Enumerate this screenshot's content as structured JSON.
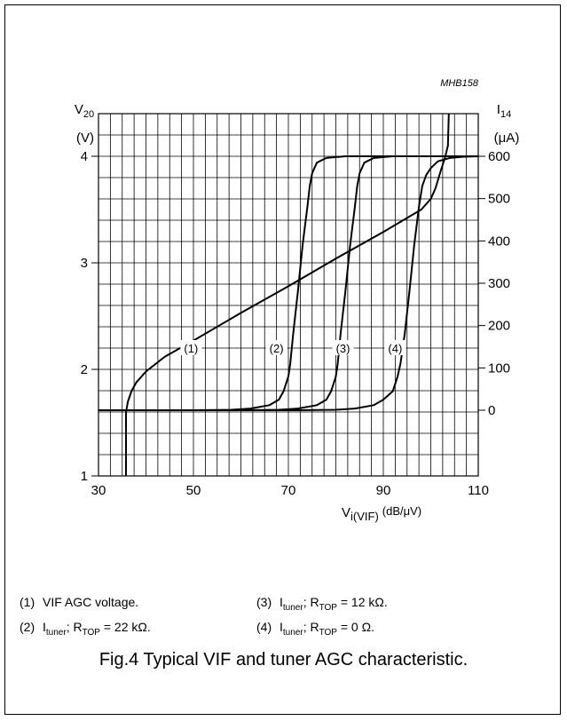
{
  "chart_data": {
    "type": "line",
    "drawing_id": "MHB158",
    "x": {
      "symbol": "V",
      "subscript": "i(VIF)",
      "unit": "(dB/μV)",
      "lim": [
        30,
        110
      ],
      "ticks": [
        "30",
        "50",
        "70",
        "90",
        "110"
      ]
    },
    "y_left": {
      "symbol": "V",
      "subscript": "20",
      "unit": "(V)",
      "lim": [
        1,
        4.4
      ],
      "ticks": [
        "1",
        "2",
        "3",
        "4"
      ]
    },
    "y_right": {
      "symbol": "I",
      "subscript": "14",
      "unit": "(μA)",
      "lim": [
        0,
        600
      ],
      "ticks": [
        "0",
        "100",
        "200",
        "300",
        "400",
        "500",
        "600"
      ]
    },
    "grid": true,
    "series": [
      {
        "name": "(1)",
        "axis": "left",
        "points": [
          [
            35.8,
            1.0
          ],
          [
            35.8,
            1.6
          ],
          [
            36.2,
            1.7
          ],
          [
            37,
            1.8
          ],
          [
            38,
            1.88
          ],
          [
            40,
            1.98
          ],
          [
            42,
            2.05
          ],
          [
            44,
            2.12
          ],
          [
            46,
            2.17
          ],
          [
            48,
            2.22
          ],
          [
            50,
            2.27
          ],
          [
            60,
            2.53
          ],
          [
            70,
            2.78
          ],
          [
            80,
            3.04
          ],
          [
            90,
            3.29
          ],
          [
            98,
            3.5
          ],
          [
            100,
            3.6
          ],
          [
            101,
            3.7
          ],
          [
            102,
            3.85
          ],
          [
            103,
            3.99
          ],
          [
            103.6,
            4.1
          ],
          [
            103.8,
            4.4
          ]
        ]
      },
      {
        "name": "(2)",
        "axis": "right",
        "points": [
          [
            30,
            0
          ],
          [
            50,
            0
          ],
          [
            58,
            1
          ],
          [
            62,
            4
          ],
          [
            66,
            12
          ],
          [
            68,
            25
          ],
          [
            69,
            45
          ],
          [
            70,
            80
          ],
          [
            70.4,
            110
          ],
          [
            71,
            180
          ],
          [
            72,
            280
          ],
          [
            73,
            390
          ],
          [
            74,
            480
          ],
          [
            74.5,
            530
          ],
          [
            75,
            560
          ],
          [
            76,
            585
          ],
          [
            78,
            596
          ],
          [
            82,
            600
          ],
          [
            110,
            600
          ]
        ]
      },
      {
        "name": "(3)",
        "axis": "right",
        "points": [
          [
            30,
            0
          ],
          [
            60,
            0
          ],
          [
            68,
            1
          ],
          [
            72,
            4
          ],
          [
            76,
            12
          ],
          [
            78,
            25
          ],
          [
            79,
            45
          ],
          [
            80,
            80
          ],
          [
            80.4,
            110
          ],
          [
            81,
            180
          ],
          [
            82,
            280
          ],
          [
            83,
            390
          ],
          [
            84,
            480
          ],
          [
            84.5,
            530
          ],
          [
            85,
            560
          ],
          [
            86,
            585
          ],
          [
            88,
            596
          ],
          [
            92,
            600
          ],
          [
            110,
            600
          ]
        ]
      },
      {
        "name": "(4)",
        "axis": "right",
        "points": [
          [
            30,
            0
          ],
          [
            72,
            0
          ],
          [
            80,
            1
          ],
          [
            84,
            4
          ],
          [
            88,
            12
          ],
          [
            90,
            25
          ],
          [
            92,
            45
          ],
          [
            93,
            80
          ],
          [
            93.6,
            110
          ],
          [
            94.5,
            180
          ],
          [
            95.5,
            280
          ],
          [
            96.5,
            390
          ],
          [
            97.5,
            480
          ],
          [
            98.2,
            530
          ],
          [
            99,
            555
          ],
          [
            100,
            572
          ],
          [
            101.5,
            588
          ],
          [
            104,
            596
          ],
          [
            107,
            599
          ],
          [
            110,
            600
          ]
        ]
      }
    ],
    "curve_labels": [
      {
        "text": "(1)",
        "x": 49.5,
        "y_left": 2.2
      },
      {
        "text": "(2)",
        "x": 67.5,
        "y_left": 2.2
      },
      {
        "text": "(3)",
        "x": 81.5,
        "y_left": 2.2
      },
      {
        "text": "(4)",
        "x": 92.5,
        "y_left": 2.2
      }
    ]
  },
  "legend": [
    {
      "num": "(1)",
      "text": "VIF AGC voltage."
    },
    {
      "num": "(2)",
      "main": "I",
      "sub": "tuner",
      "mid": "; R",
      "sub2": "TOP",
      "tail": " = 22 kΩ."
    },
    {
      "num": "(3)",
      "main": "I",
      "sub": "tuner",
      "mid": "; R",
      "sub2": "TOP",
      "tail": " = 12 kΩ."
    },
    {
      "num": "(4)",
      "main": "I",
      "sub": "tuner",
      "mid": "; R",
      "sub2": "TOP",
      "tail": " = 0 Ω."
    }
  ],
  "caption": "Fig.4  Typical VIF and tuner AGC characteristic."
}
